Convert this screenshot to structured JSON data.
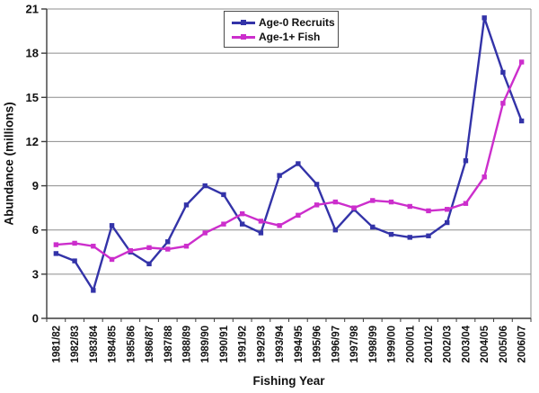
{
  "colors": {
    "background": "#FFFFFF",
    "grid": "#8C8C8C",
    "axis": "#3C3C3C",
    "text": "#111111",
    "series_blue": "#3333A8",
    "series_magenta": "#CC2ECC"
  },
  "chart_data": {
    "type": "line",
    "title": "",
    "xlabel": "Fishing Year",
    "ylabel": "Abundance (millions)",
    "ylim": [
      0,
      21
    ],
    "yticks": [
      0,
      3,
      6,
      9,
      12,
      15,
      18,
      21
    ],
    "grid": true,
    "legend_position": "top-center",
    "marker": "square",
    "categories": [
      "1981/82",
      "1982/83",
      "1983/84",
      "1984/85",
      "1985/86",
      "1986/87",
      "1987/88",
      "1988/89",
      "1989/90",
      "1990/91",
      "1991/92",
      "1992/93",
      "1993/94",
      "1994/95",
      "1995/96",
      "1996/97",
      "1997/98",
      "1998/99",
      "1999/00",
      "2000/01",
      "2001/02",
      "2002/03",
      "2003/04",
      "2004/05",
      "2005/06",
      "2006/07"
    ],
    "series": [
      {
        "name": "Age-0 Recruits",
        "color": "#3333A8",
        "values": [
          4.4,
          3.9,
          1.9,
          6.3,
          4.5,
          3.7,
          5.2,
          7.7,
          9.0,
          8.4,
          6.4,
          5.8,
          9.7,
          10.5,
          9.1,
          6.0,
          7.4,
          6.2,
          5.7,
          5.5,
          5.6,
          6.5,
          10.7,
          20.4,
          16.7,
          13.4
        ]
      },
      {
        "name": "Age-1+ Fish",
        "color": "#CC2ECC",
        "values": [
          5.0,
          5.1,
          4.9,
          4.0,
          4.6,
          4.8,
          4.7,
          4.9,
          5.8,
          6.4,
          7.1,
          6.6,
          6.3,
          7.0,
          7.7,
          7.9,
          7.5,
          8.0,
          7.9,
          7.6,
          7.3,
          7.4,
          7.8,
          9.6,
          14.6,
          17.4
        ]
      }
    ]
  }
}
